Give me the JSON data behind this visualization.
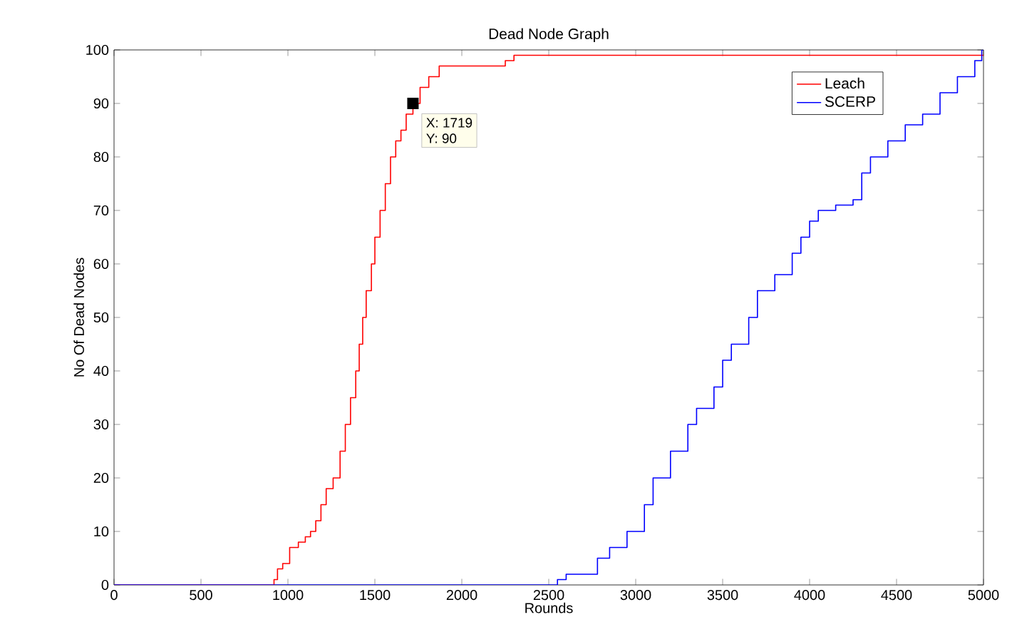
{
  "chart_data": {
    "type": "step",
    "title": "Dead Node Graph",
    "xlabel": "Rounds",
    "ylabel": "No Of Dead Nodes",
    "xlim": [
      0,
      5000
    ],
    "ylim": [
      0,
      100
    ],
    "xticks": [
      0,
      500,
      1000,
      1500,
      2000,
      2500,
      3000,
      3500,
      4000,
      4500,
      5000
    ],
    "yticks": [
      0,
      10,
      20,
      30,
      40,
      50,
      60,
      70,
      80,
      90,
      100
    ],
    "grid": false,
    "legend": "top right",
    "marker": "none",
    "line_style": "solid",
    "annotations": [
      {
        "text": "X: 1719",
        "x": 1719,
        "y": 90
      },
      "Y: 90"
    ],
    "series": [
      {
        "name": "Leach",
        "color": "#ff0000",
        "x": [
          0,
          900,
          920,
          940,
          970,
          1010,
          1060,
          1100,
          1130,
          1160,
          1190,
          1220,
          1260,
          1300,
          1330,
          1360,
          1390,
          1410,
          1430,
          1450,
          1480,
          1500,
          1530,
          1560,
          1590,
          1620,
          1650,
          1680,
          1719,
          1760,
          1810,
          1870,
          2200,
          2250,
          2300,
          5000
        ],
        "values": [
          0,
          0,
          1,
          3,
          4,
          7,
          8,
          9,
          10,
          12,
          15,
          18,
          20,
          25,
          30,
          35,
          40,
          45,
          50,
          55,
          60,
          65,
          70,
          75,
          80,
          83,
          85,
          88,
          90,
          93,
          95,
          97,
          97,
          98,
          99,
          99
        ]
      },
      {
        "name": "SCERP",
        "color": "#0000ff",
        "x": [
          0,
          2550,
          2600,
          2750,
          2780,
          2850,
          2950,
          3050,
          3100,
          3200,
          3300,
          3350,
          3450,
          3500,
          3550,
          3650,
          3700,
          3800,
          3900,
          3950,
          4000,
          4050,
          4150,
          4250,
          4300,
          4350,
          4450,
          4550,
          4650,
          4750,
          4850,
          4950,
          4990,
          5000
        ],
        "values": [
          0,
          1,
          2,
          2,
          5,
          7,
          10,
          15,
          20,
          25,
          30,
          33,
          37,
          42,
          45,
          50,
          55,
          58,
          62,
          65,
          68,
          70,
          71,
          72,
          77,
          80,
          83,
          86,
          88,
          92,
          95,
          98,
          100,
          100
        ]
      }
    ]
  }
}
